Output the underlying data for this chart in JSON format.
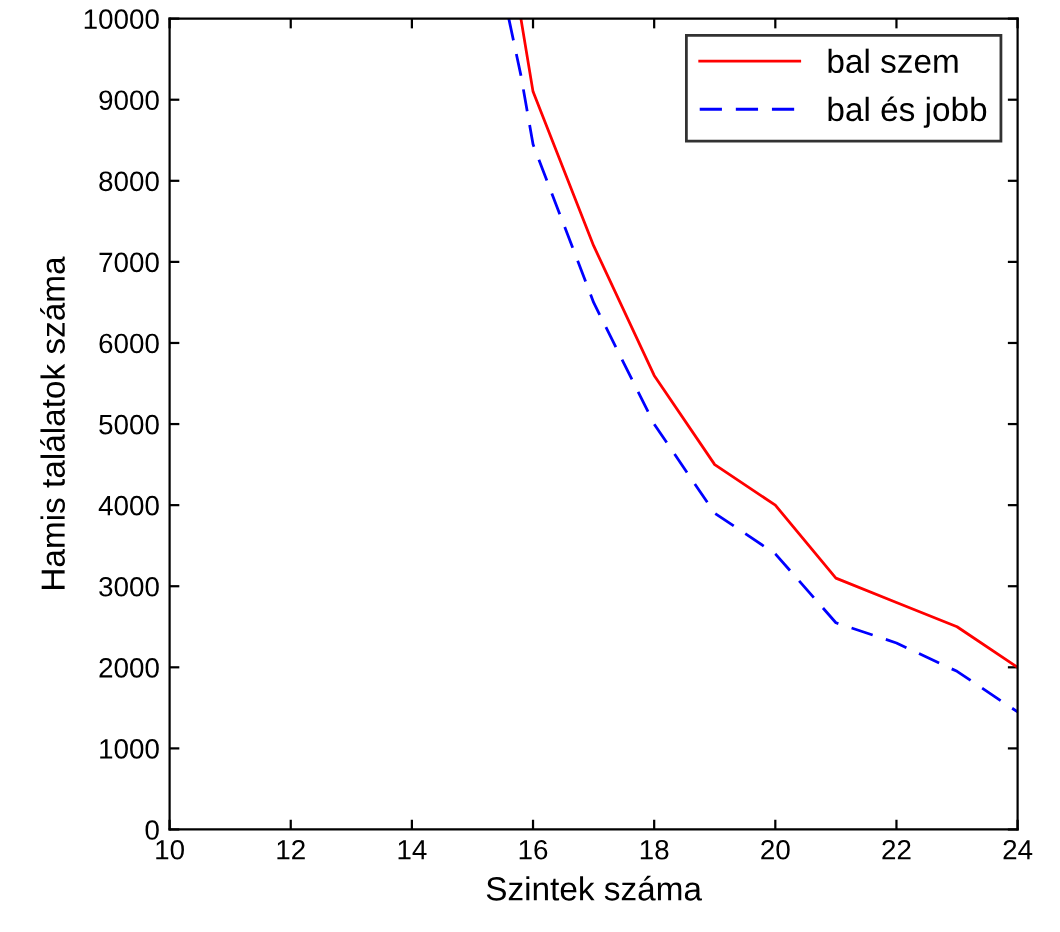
{
  "chart_data": {
    "type": "line",
    "xlabel": "Szintek száma",
    "ylabel": "Hamis találatok száma",
    "xlim": [
      10,
      24
    ],
    "ylim": [
      0,
      10000
    ],
    "xticks": [
      10,
      12,
      14,
      16,
      18,
      20,
      22,
      24
    ],
    "yticks": [
      0,
      1000,
      2000,
      3000,
      4000,
      5000,
      6000,
      7000,
      8000,
      9000,
      10000
    ],
    "grid": false,
    "legend": "top right",
    "marker": "none",
    "series": [
      {
        "name": "bal szem",
        "color": "#ff0000",
        "line_style": "solid",
        "x": [
          15.8,
          16,
          17,
          18,
          19,
          20,
          21,
          22,
          23,
          24
        ],
        "values": [
          10000,
          9100,
          7200,
          5600,
          4500,
          4000,
          3100,
          2800,
          2500,
          2000
        ]
      },
      {
        "name": "bal és jobb",
        "color": "#0000ff",
        "line_style": "dashed",
        "x": [
          15.6,
          15.8,
          16,
          17,
          18,
          19,
          20,
          21,
          22,
          23,
          24
        ],
        "values": [
          10000,
          9300,
          8450,
          6500,
          5000,
          3900,
          3400,
          2550,
          2300,
          1950,
          1450
        ]
      }
    ]
  }
}
